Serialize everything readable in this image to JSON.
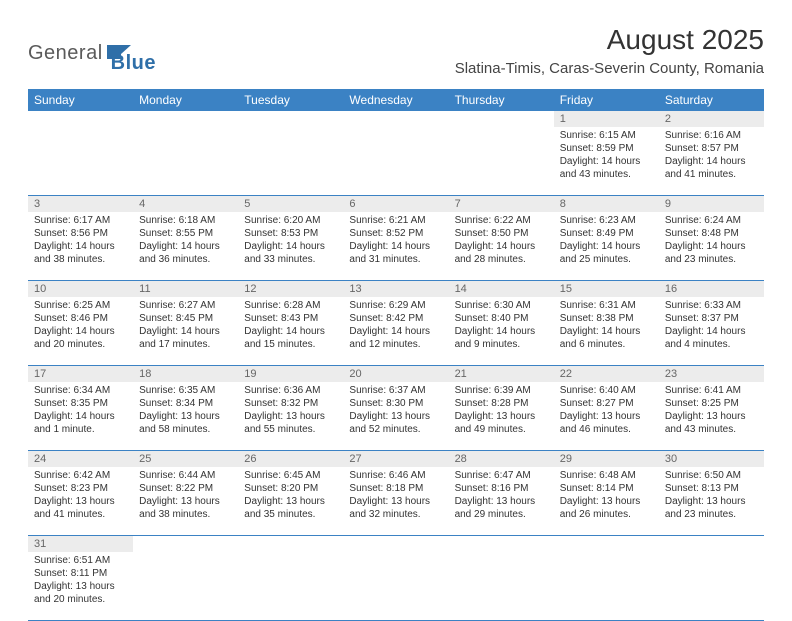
{
  "logo": {
    "text1": "General",
    "text2": "Blue"
  },
  "title": "August 2025",
  "location": "Slatina-Timis, Caras-Severin County, Romania",
  "colors": {
    "header_bg": "#3b82c4",
    "header_fg": "#ffffff",
    "daynum_bg": "#ececec",
    "rule": "#3b82c4",
    "text": "#333333",
    "logo_gray": "#5a5a5a",
    "logo_blue": "#2f6fa8"
  },
  "daynames": [
    "Sunday",
    "Monday",
    "Tuesday",
    "Wednesday",
    "Thursday",
    "Friday",
    "Saturday"
  ],
  "weeks": [
    [
      null,
      null,
      null,
      null,
      null,
      {
        "n": "1",
        "sr": "6:15 AM",
        "ss": "8:59 PM",
        "dl": "14 hours and 43 minutes."
      },
      {
        "n": "2",
        "sr": "6:16 AM",
        "ss": "8:57 PM",
        "dl": "14 hours and 41 minutes."
      }
    ],
    [
      {
        "n": "3",
        "sr": "6:17 AM",
        "ss": "8:56 PM",
        "dl": "14 hours and 38 minutes."
      },
      {
        "n": "4",
        "sr": "6:18 AM",
        "ss": "8:55 PM",
        "dl": "14 hours and 36 minutes."
      },
      {
        "n": "5",
        "sr": "6:20 AM",
        "ss": "8:53 PM",
        "dl": "14 hours and 33 minutes."
      },
      {
        "n": "6",
        "sr": "6:21 AM",
        "ss": "8:52 PM",
        "dl": "14 hours and 31 minutes."
      },
      {
        "n": "7",
        "sr": "6:22 AM",
        "ss": "8:50 PM",
        "dl": "14 hours and 28 minutes."
      },
      {
        "n": "8",
        "sr": "6:23 AM",
        "ss": "8:49 PM",
        "dl": "14 hours and 25 minutes."
      },
      {
        "n": "9",
        "sr": "6:24 AM",
        "ss": "8:48 PM",
        "dl": "14 hours and 23 minutes."
      }
    ],
    [
      {
        "n": "10",
        "sr": "6:25 AM",
        "ss": "8:46 PM",
        "dl": "14 hours and 20 minutes."
      },
      {
        "n": "11",
        "sr": "6:27 AM",
        "ss": "8:45 PM",
        "dl": "14 hours and 17 minutes."
      },
      {
        "n": "12",
        "sr": "6:28 AM",
        "ss": "8:43 PM",
        "dl": "14 hours and 15 minutes."
      },
      {
        "n": "13",
        "sr": "6:29 AM",
        "ss": "8:42 PM",
        "dl": "14 hours and 12 minutes."
      },
      {
        "n": "14",
        "sr": "6:30 AM",
        "ss": "8:40 PM",
        "dl": "14 hours and 9 minutes."
      },
      {
        "n": "15",
        "sr": "6:31 AM",
        "ss": "8:38 PM",
        "dl": "14 hours and 6 minutes."
      },
      {
        "n": "16",
        "sr": "6:33 AM",
        "ss": "8:37 PM",
        "dl": "14 hours and 4 minutes."
      }
    ],
    [
      {
        "n": "17",
        "sr": "6:34 AM",
        "ss": "8:35 PM",
        "dl": "14 hours and 1 minute."
      },
      {
        "n": "18",
        "sr": "6:35 AM",
        "ss": "8:34 PM",
        "dl": "13 hours and 58 minutes."
      },
      {
        "n": "19",
        "sr": "6:36 AM",
        "ss": "8:32 PM",
        "dl": "13 hours and 55 minutes."
      },
      {
        "n": "20",
        "sr": "6:37 AM",
        "ss": "8:30 PM",
        "dl": "13 hours and 52 minutes."
      },
      {
        "n": "21",
        "sr": "6:39 AM",
        "ss": "8:28 PM",
        "dl": "13 hours and 49 minutes."
      },
      {
        "n": "22",
        "sr": "6:40 AM",
        "ss": "8:27 PM",
        "dl": "13 hours and 46 minutes."
      },
      {
        "n": "23",
        "sr": "6:41 AM",
        "ss": "8:25 PM",
        "dl": "13 hours and 43 minutes."
      }
    ],
    [
      {
        "n": "24",
        "sr": "6:42 AM",
        "ss": "8:23 PM",
        "dl": "13 hours and 41 minutes."
      },
      {
        "n": "25",
        "sr": "6:44 AM",
        "ss": "8:22 PM",
        "dl": "13 hours and 38 minutes."
      },
      {
        "n": "26",
        "sr": "6:45 AM",
        "ss": "8:20 PM",
        "dl": "13 hours and 35 minutes."
      },
      {
        "n": "27",
        "sr": "6:46 AM",
        "ss": "8:18 PM",
        "dl": "13 hours and 32 minutes."
      },
      {
        "n": "28",
        "sr": "6:47 AM",
        "ss": "8:16 PM",
        "dl": "13 hours and 29 minutes."
      },
      {
        "n": "29",
        "sr": "6:48 AM",
        "ss": "8:14 PM",
        "dl": "13 hours and 26 minutes."
      },
      {
        "n": "30",
        "sr": "6:50 AM",
        "ss": "8:13 PM",
        "dl": "13 hours and 23 minutes."
      }
    ],
    [
      {
        "n": "31",
        "sr": "6:51 AM",
        "ss": "8:11 PM",
        "dl": "13 hours and 20 minutes."
      },
      null,
      null,
      null,
      null,
      null,
      null
    ]
  ],
  "labels": {
    "sunrise": "Sunrise: ",
    "sunset": "Sunset: ",
    "daylight": "Daylight: "
  }
}
